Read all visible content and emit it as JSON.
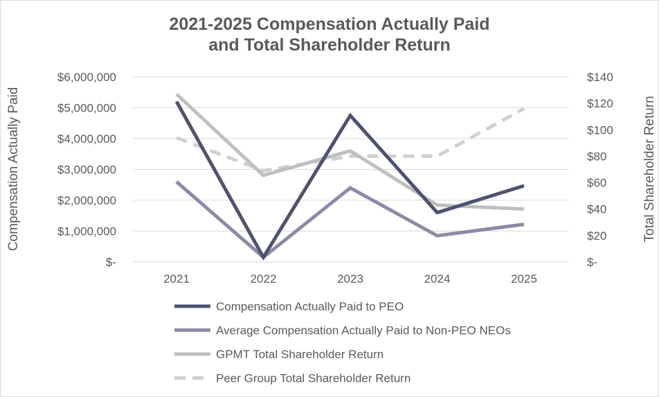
{
  "chart_data": {
    "type": "line",
    "title_lines": [
      "2021-2025 Compensation Actually Paid",
      "and Total Shareholder Return"
    ],
    "categories": [
      "2021",
      "2022",
      "2023",
      "2024",
      "2025"
    ],
    "y_left": {
      "label": "Compensation Actually Paid",
      "ylim": [
        0,
        6000000
      ],
      "ticks": [
        0,
        1000000,
        2000000,
        3000000,
        4000000,
        5000000,
        6000000
      ],
      "tick_labels": [
        "$-",
        "$1,000,000",
        "$2,000,000",
        "$3,000,000",
        "$4,000,000",
        "$5,000,000",
        "$6,000,000"
      ]
    },
    "y_right": {
      "label": "Total Shareholder Return",
      "ylim": [
        0,
        140
      ],
      "ticks": [
        0,
        20,
        40,
        60,
        80,
        100,
        120,
        140
      ],
      "tick_labels": [
        "$-",
        "$20",
        "$40",
        "$60",
        "$80",
        "$100",
        "$120",
        "$140"
      ]
    },
    "grid": true,
    "legend_position": "bottom",
    "series": [
      {
        "name": "Compensation Actually Paid to PEO",
        "axis": "left",
        "values": [
          5200000,
          150000,
          4750000,
          1600000,
          2470000
        ],
        "color": "#4d5270",
        "style": "solid"
      },
      {
        "name": "Average Compensation Actually Paid to Non-PEO NEOs",
        "axis": "left",
        "values": [
          2600000,
          150000,
          2400000,
          850000,
          1220000
        ],
        "color": "#8c8aa6",
        "style": "solid"
      },
      {
        "name": "GPMT Total Shareholder Return",
        "axis": "right",
        "values": [
          127,
          65.5,
          84,
          43,
          40
        ],
        "color": "#bfbfbf",
        "style": "solid"
      },
      {
        "name": "Peer Group Total Shareholder Return",
        "axis": "right",
        "values": [
          94,
          69,
          80,
          80,
          116
        ],
        "color": "#d0d0d0",
        "style": "dashed"
      }
    ]
  }
}
